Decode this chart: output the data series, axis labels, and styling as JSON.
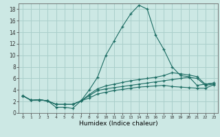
{
  "xlabel": "Humidex (Indice chaleur)",
  "background_color": "#cce8e4",
  "grid_color": "#aacfcb",
  "line_color": "#1a6b62",
  "xlim": [
    -0.5,
    23.5
  ],
  "ylim": [
    0,
    19
  ],
  "xticks": [
    0,
    1,
    2,
    3,
    4,
    5,
    6,
    7,
    8,
    9,
    10,
    11,
    12,
    13,
    14,
    15,
    16,
    17,
    18,
    19,
    20,
    21,
    22,
    23
  ],
  "yticks": [
    0,
    2,
    4,
    6,
    8,
    10,
    12,
    14,
    16,
    18
  ],
  "line1_y": [
    3,
    2.2,
    2.3,
    2.1,
    1.0,
    1.0,
    0.8,
    2.1,
    4.0,
    6.2,
    10.0,
    12.5,
    15.0,
    17.2,
    18.7,
    18.0,
    13.5,
    11.0,
    8.0,
    6.5,
    6.3,
    4.8,
    5.0,
    5.2
  ],
  "line2_y": [
    3,
    2.2,
    2.3,
    2.1,
    1.5,
    1.5,
    1.5,
    2.1,
    3.2,
    4.2,
    4.7,
    5.0,
    5.3,
    5.6,
    5.8,
    6.0,
    6.2,
    6.5,
    7.0,
    6.8,
    6.6,
    6.3,
    5.0,
    5.2
  ],
  "line3_y": [
    3,
    2.2,
    2.3,
    2.1,
    1.5,
    1.5,
    1.5,
    2.1,
    3.0,
    3.9,
    4.2,
    4.4,
    4.6,
    4.8,
    5.0,
    5.2,
    5.4,
    5.6,
    5.8,
    6.0,
    6.2,
    6.0,
    4.8,
    5.0
  ],
  "line4_y": [
    3,
    2.2,
    2.3,
    2.1,
    1.5,
    1.5,
    1.5,
    2.1,
    2.6,
    3.3,
    3.6,
    3.9,
    4.1,
    4.3,
    4.5,
    4.6,
    4.7,
    4.8,
    4.6,
    4.5,
    4.4,
    4.3,
    4.3,
    4.9
  ]
}
